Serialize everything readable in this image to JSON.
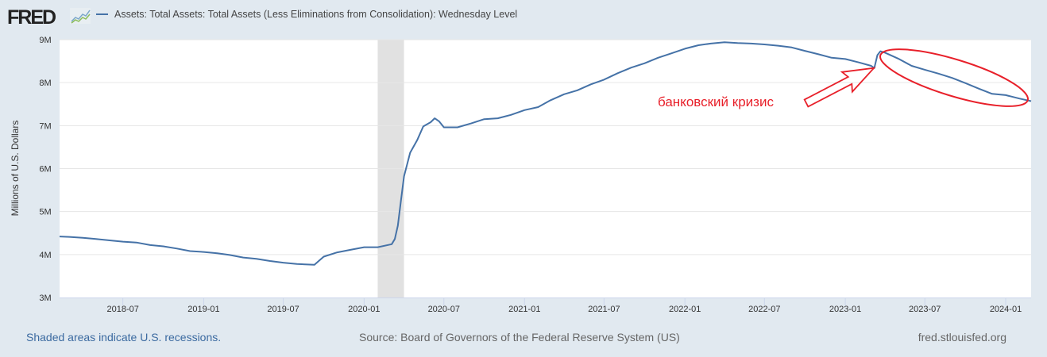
{
  "header": {
    "logo_text": "FRED",
    "series_title": "Assets: Total Assets: Total Assets (Less Eliminations from Consolidation): Wednesday Level"
  },
  "footer": {
    "recession_note": "Shaded areas indicate U.S. recessions.",
    "source": "Source: Board of Governors of the Federal Reserve System (US)",
    "site": "fred.stlouisfed.org"
  },
  "colors": {
    "line": "#4572a7",
    "annotation": "#e8202a",
    "recession": "#e1e1e1",
    "grid": "#e6e6e6"
  },
  "chart_data": {
    "type": "line",
    "title": "Assets: Total Assets: Total Assets (Less Eliminations from Consolidation): Wednesday Level",
    "ylabel": "Millions of U.S. Dollars",
    "xlabel": "",
    "ylim": [
      3000000,
      9000000
    ],
    "xlim": [
      "2018-02-07",
      "2024-02-28"
    ],
    "yticks": [
      {
        "v": 3000000,
        "label": "3M"
      },
      {
        "v": 4000000,
        "label": "4M"
      },
      {
        "v": 5000000,
        "label": "5M"
      },
      {
        "v": 6000000,
        "label": "6M"
      },
      {
        "v": 7000000,
        "label": "7M"
      },
      {
        "v": 8000000,
        "label": "8M"
      },
      {
        "v": 9000000,
        "label": "9M"
      }
    ],
    "xticks": [
      "2018-07",
      "2019-01",
      "2019-07",
      "2020-01",
      "2020-07",
      "2021-01",
      "2021-07",
      "2022-01",
      "2022-07",
      "2023-01",
      "2023-07",
      "2024-01"
    ],
    "grid": true,
    "recessions": [
      [
        "2020-02-01",
        "2020-04-01"
      ]
    ],
    "annotations": [
      {
        "text": "банковский кризис",
        "points_to": "2023-03-08"
      }
    ],
    "series": [
      {
        "name": "Assets: Total Assets: Total Assets (Less Eliminations from Consolidation): Wednesday Level",
        "x": [
          "2018-02-07",
          "2018-03-01",
          "2018-04-01",
          "2018-05-01",
          "2018-06-01",
          "2018-07-01",
          "2018-08-01",
          "2018-09-01",
          "2018-10-01",
          "2018-11-01",
          "2018-12-01",
          "2019-01-01",
          "2019-02-01",
          "2019-03-01",
          "2019-04-01",
          "2019-05-01",
          "2019-06-01",
          "2019-07-01",
          "2019-08-01",
          "2019-09-10",
          "2019-10-01",
          "2019-11-01",
          "2019-12-01",
          "2020-01-01",
          "2020-02-01",
          "2020-03-04",
          "2020-03-11",
          "2020-03-18",
          "2020-03-25",
          "2020-04-01",
          "2020-04-15",
          "2020-05-01",
          "2020-05-15",
          "2020-06-01",
          "2020-06-10",
          "2020-06-20",
          "2020-07-01",
          "2020-08-01",
          "2020-09-01",
          "2020-10-01",
          "2020-11-01",
          "2020-12-01",
          "2021-01-01",
          "2021-02-01",
          "2021-03-01",
          "2021-04-01",
          "2021-05-01",
          "2021-06-01",
          "2021-07-01",
          "2021-08-01",
          "2021-09-01",
          "2021-10-01",
          "2021-11-01",
          "2021-12-01",
          "2022-01-01",
          "2022-02-01",
          "2022-03-01",
          "2022-04-01",
          "2022-05-01",
          "2022-06-01",
          "2022-07-01",
          "2022-08-01",
          "2022-09-01",
          "2022-10-01",
          "2022-11-01",
          "2022-12-01",
          "2023-01-01",
          "2023-02-01",
          "2023-03-01",
          "2023-03-08",
          "2023-03-15",
          "2023-03-22",
          "2023-04-01",
          "2023-05-01",
          "2023-06-01",
          "2023-07-01",
          "2023-08-01",
          "2023-09-01",
          "2023-10-01",
          "2023-11-01",
          "2023-12-01",
          "2024-01-01",
          "2024-02-01",
          "2024-02-28"
        ],
        "values": [
          4420000,
          4410000,
          4390000,
          4360000,
          4330000,
          4300000,
          4280000,
          4220000,
          4190000,
          4140000,
          4080000,
          4060000,
          4030000,
          3990000,
          3930000,
          3900000,
          3850000,
          3810000,
          3780000,
          3760000,
          3950000,
          4050000,
          4110000,
          4170000,
          4170000,
          4240000,
          4360000,
          4670000,
          5250000,
          5820000,
          6370000,
          6660000,
          6980000,
          7080000,
          7170000,
          7100000,
          6960000,
          6960000,
          7050000,
          7150000,
          7170000,
          7250000,
          7360000,
          7430000,
          7590000,
          7730000,
          7820000,
          7960000,
          8070000,
          8220000,
          8350000,
          8450000,
          8580000,
          8680000,
          8790000,
          8870000,
          8910000,
          8940000,
          8920000,
          8910000,
          8890000,
          8860000,
          8820000,
          8740000,
          8660000,
          8580000,
          8550000,
          8470000,
          8390000,
          8340000,
          8640000,
          8730000,
          8700000,
          8560000,
          8390000,
          8300000,
          8210000,
          8110000,
          7990000,
          7860000,
          7740000,
          7710000,
          7630000,
          7570000
        ]
      }
    ]
  }
}
